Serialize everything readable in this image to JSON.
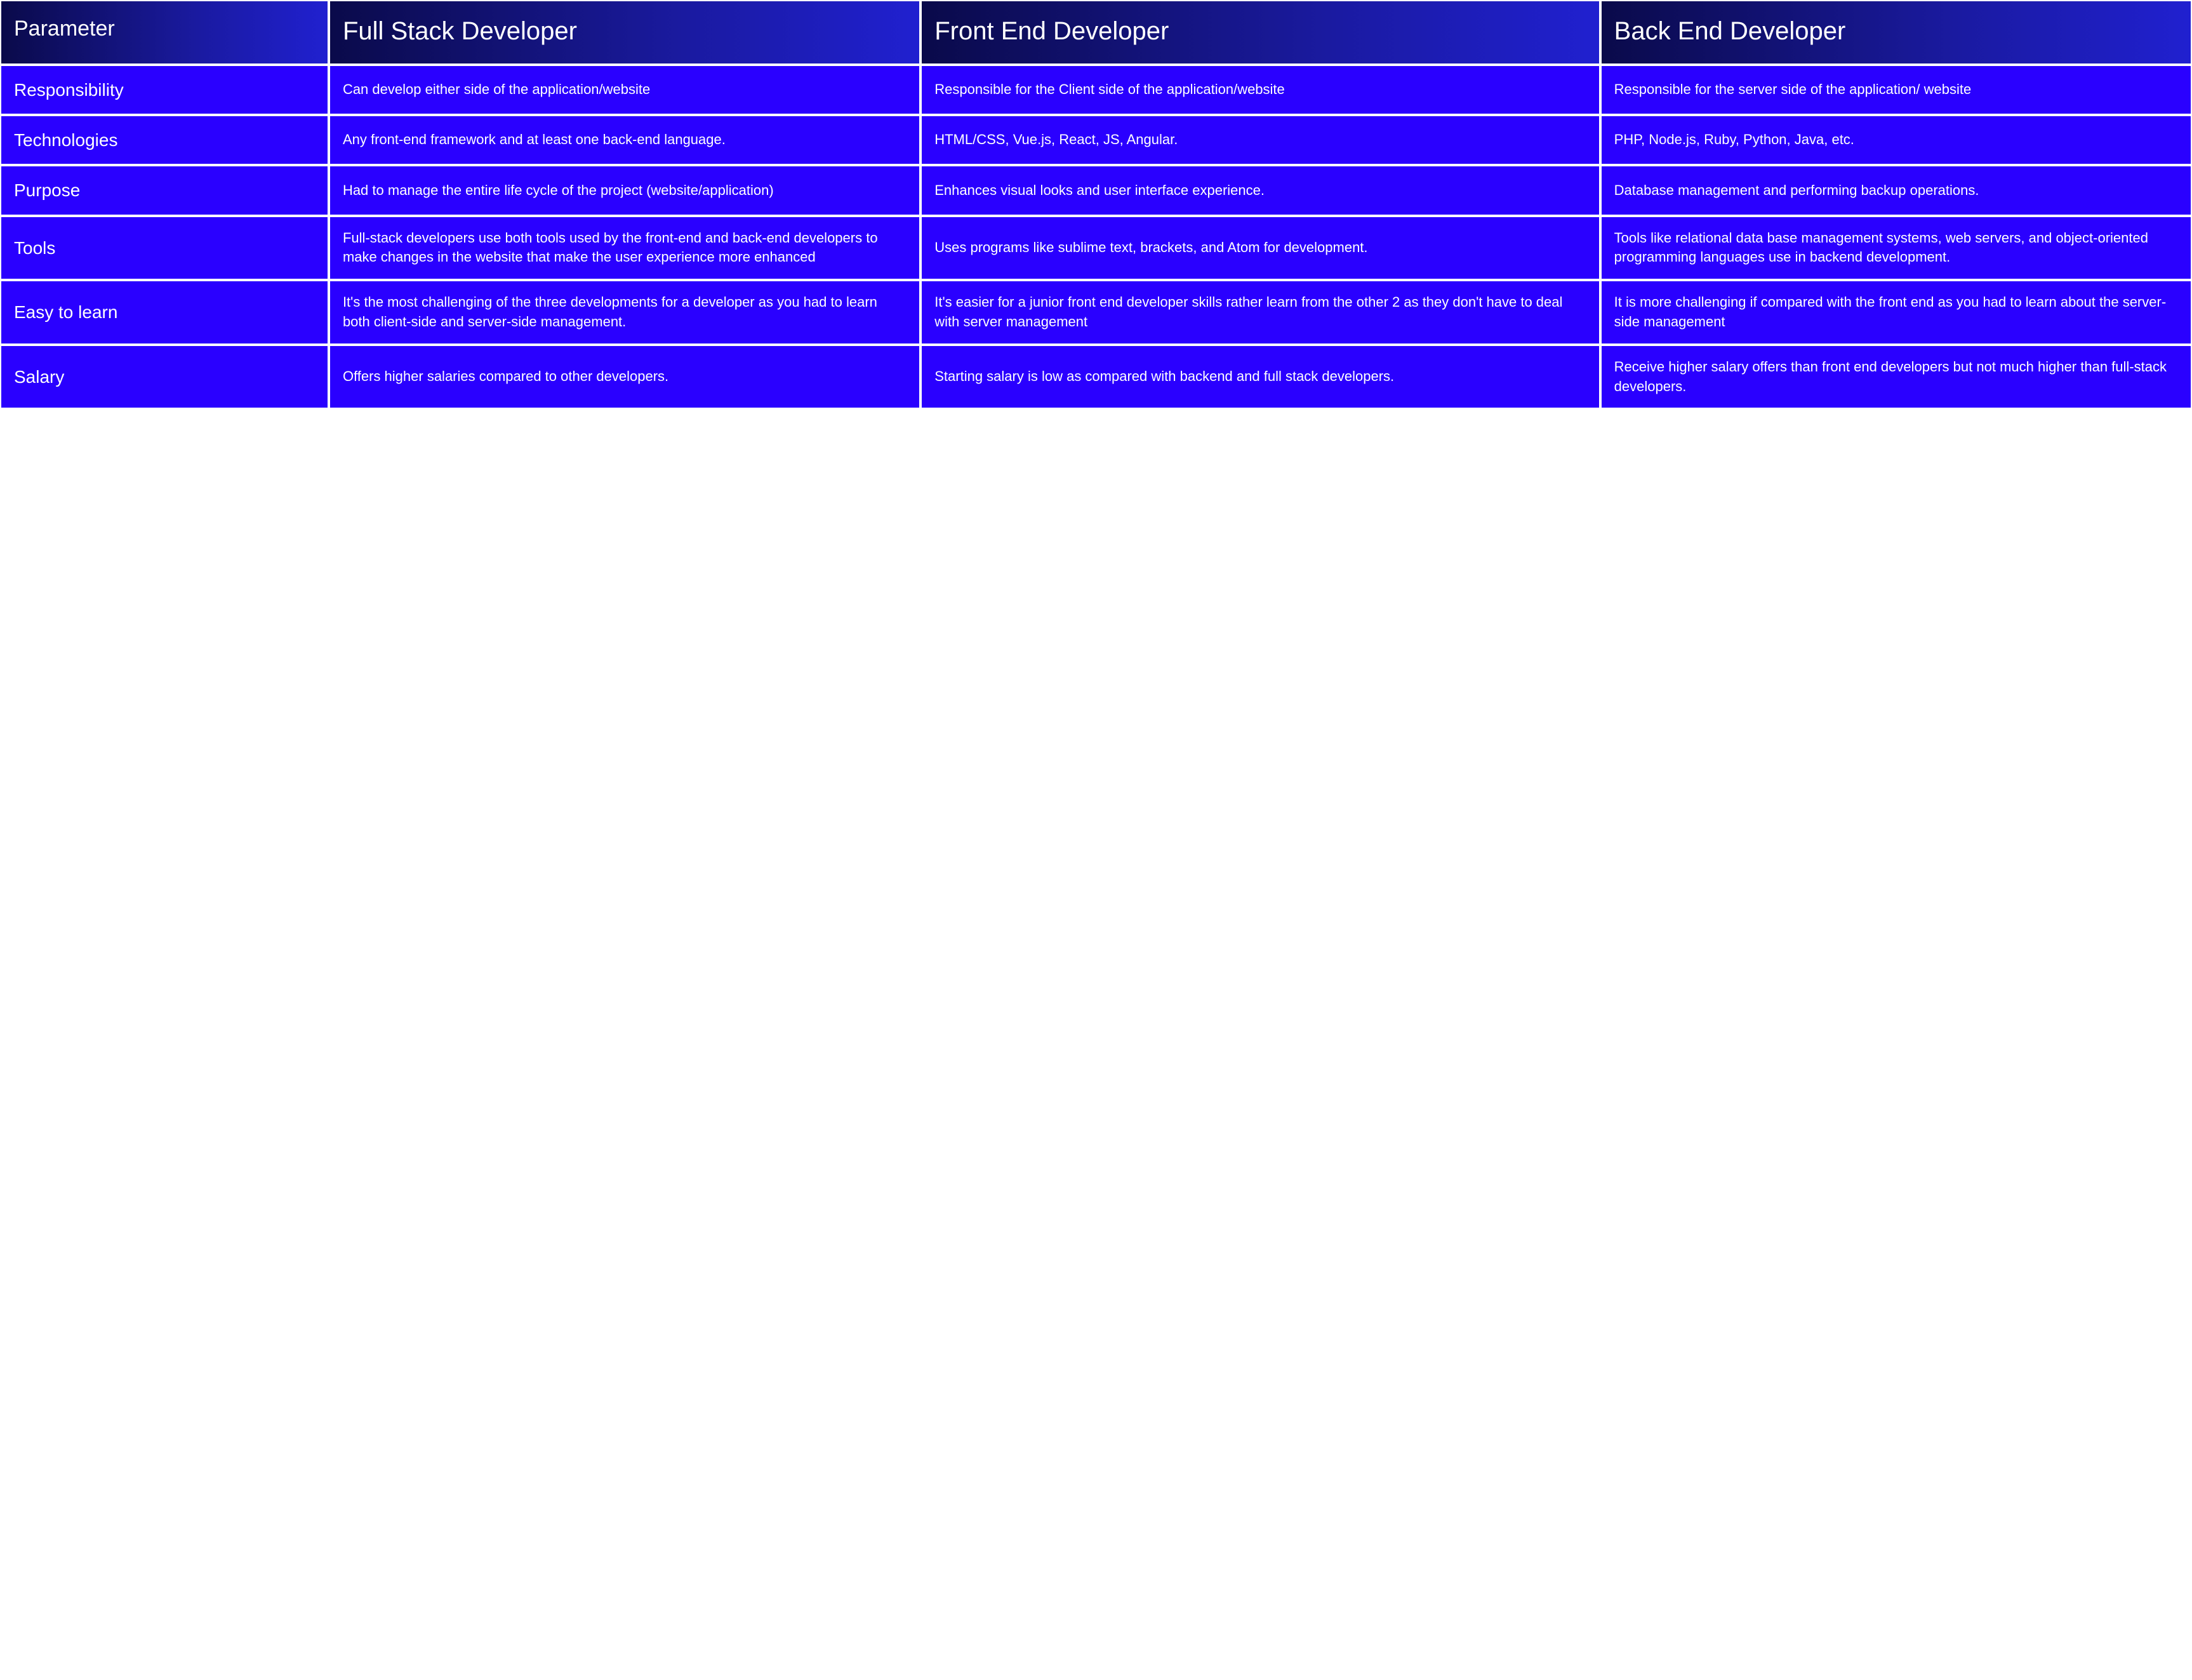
{
  "table": {
    "type": "table",
    "colors": {
      "header_gradient_from": "#0a0a4a",
      "header_gradient_mid": "#1a1aa0",
      "header_gradient_to": "#2020d0",
      "cell_bg": "#2a00ff",
      "border": "#ffffff",
      "text": "#ffffff"
    },
    "typography": {
      "header_fontsize_pt": 30,
      "param_header_fontsize_pt": 26,
      "param_fontsize_pt": 21,
      "cell_fontsize_pt": 17,
      "font_family": "Segoe UI / Helvetica Neue / Arial",
      "header_weight": "400"
    },
    "column_widths_pct": [
      15,
      27,
      31,
      27
    ],
    "columns": {
      "param": "Parameter",
      "a": "Full Stack Developer",
      "b": "Front End Developer",
      "c": "Back End Developer"
    },
    "rows": [
      {
        "param": "Responsibility",
        "a": "Can develop either side of the application/website",
        "b": "Responsible for the Client side of the application/website",
        "c": "Responsible for the server side of the application/ website"
      },
      {
        "param": "Technologies",
        "a": "Any front-end framework and at least one back-end language.",
        "b": "HTML/CSS, Vue.js, React, JS, Angular.",
        "c": "PHP, Node.js, Ruby, Python, Java, etc."
      },
      {
        "param": "Purpose",
        "a": "Had to manage the entire life cycle of the project (website/application)",
        "b": "Enhances visual looks and user interface experience.",
        "c": "Database management and performing backup operations."
      },
      {
        "param": "Tools",
        "a": "Full-stack developers use both tools used by the front-end and back-end developers to make changes in the website that make the user experience more enhanced",
        "b": "Uses programs like sublime text, brackets, and Atom for development.",
        "c": "Tools like relational data base management systems, web servers, and object-oriented programming languages use in backend development."
      },
      {
        "param": "Easy to learn",
        "a": "It's the most challenging of the three developments for a developer as you had to learn both client-side and server-side management.",
        "b": "It's easier for a junior front end developer skills rather learn from the other 2 as they don't have to deal with server management",
        "c": "It is more challenging if compared with the front end as you had to learn about the server-side management"
      },
      {
        "param": "Salary",
        "a": "Offers higher salaries compared to other developers.",
        "b": "Starting salary is low as compared with backend and full stack developers.",
        "c": "Receive higher salary offers than front end developers but not much higher than full-stack developers."
      }
    ]
  }
}
